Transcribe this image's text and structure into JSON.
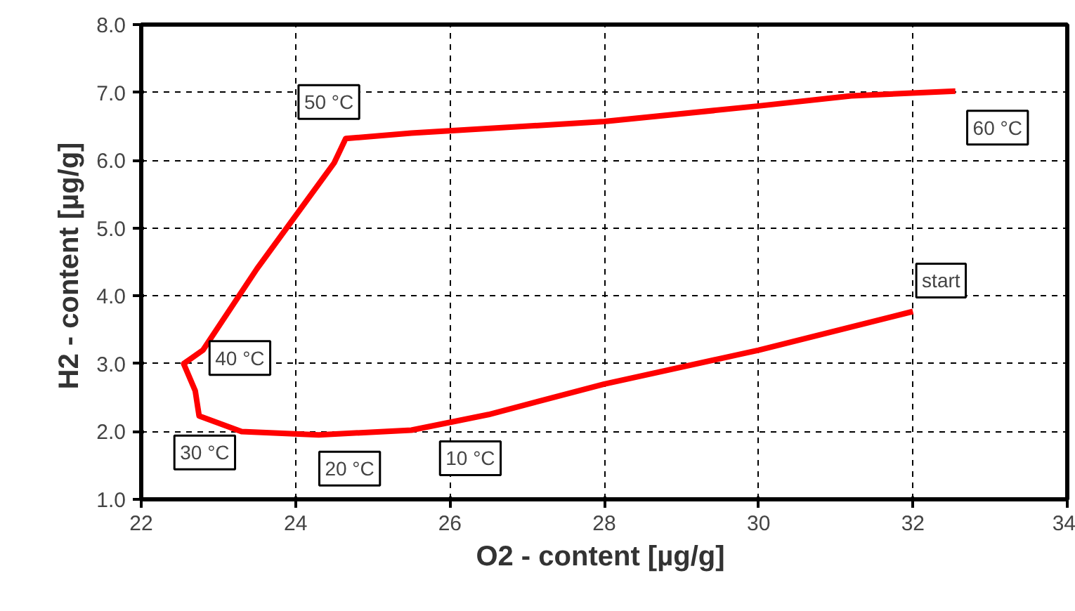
{
  "chart_data": {
    "type": "line",
    "xlabel": "O2 - content  [µg/g]",
    "ylabel": "H2 - content  [µg/g]",
    "xlim": [
      22,
      34
    ],
    "ylim": [
      1,
      8
    ],
    "xticks": [
      22,
      24,
      26,
      28,
      30,
      32,
      34
    ],
    "yticks": [
      {
        "value": 1,
        "label": "1.0"
      },
      {
        "value": 2,
        "label": "2.0"
      },
      {
        "value": 3,
        "label": "3.0"
      },
      {
        "value": 4,
        "label": "4.0"
      },
      {
        "value": 5,
        "label": "5.0"
      },
      {
        "value": 6,
        "label": "6.0"
      },
      {
        "value": 7,
        "label": "7.0"
      },
      {
        "value": 8,
        "label": "8.0"
      }
    ],
    "grid": true,
    "marker": "none",
    "line_style": "solid",
    "series": [
      {
        "color": "#ff0000",
        "x": [
          32.0,
          30.0,
          28.0,
          26.5,
          25.5,
          24.3,
          23.3,
          22.75,
          22.7,
          22.55,
          22.8,
          23.5,
          24.5,
          24.65,
          25.5,
          28.0,
          30.0,
          31.2,
          32.55
        ],
        "values": [
          3.77,
          3.2,
          2.7,
          2.25,
          2.02,
          1.95,
          2.0,
          2.23,
          2.6,
          3.0,
          3.2,
          4.4,
          5.96,
          6.32,
          6.4,
          6.57,
          6.8,
          6.95,
          7.02
        ]
      }
    ],
    "annotations": [
      {
        "text": "start",
        "x": 32.0,
        "y": 3.77
      },
      {
        "text": "10 °C",
        "x": 25.5,
        "y": 2.02
      },
      {
        "text": "20 °C",
        "x": 24.3,
        "y": 1.95
      },
      {
        "text": "30 °C",
        "x": 22.75,
        "y": 2.23
      },
      {
        "text": "40 °C",
        "x": 22.55,
        "y": 3.0
      },
      {
        "text": "50 °C",
        "x": 24.65,
        "y": 6.32
      },
      {
        "text": "60 °C",
        "x": 32.55,
        "y": 7.02
      }
    ]
  }
}
